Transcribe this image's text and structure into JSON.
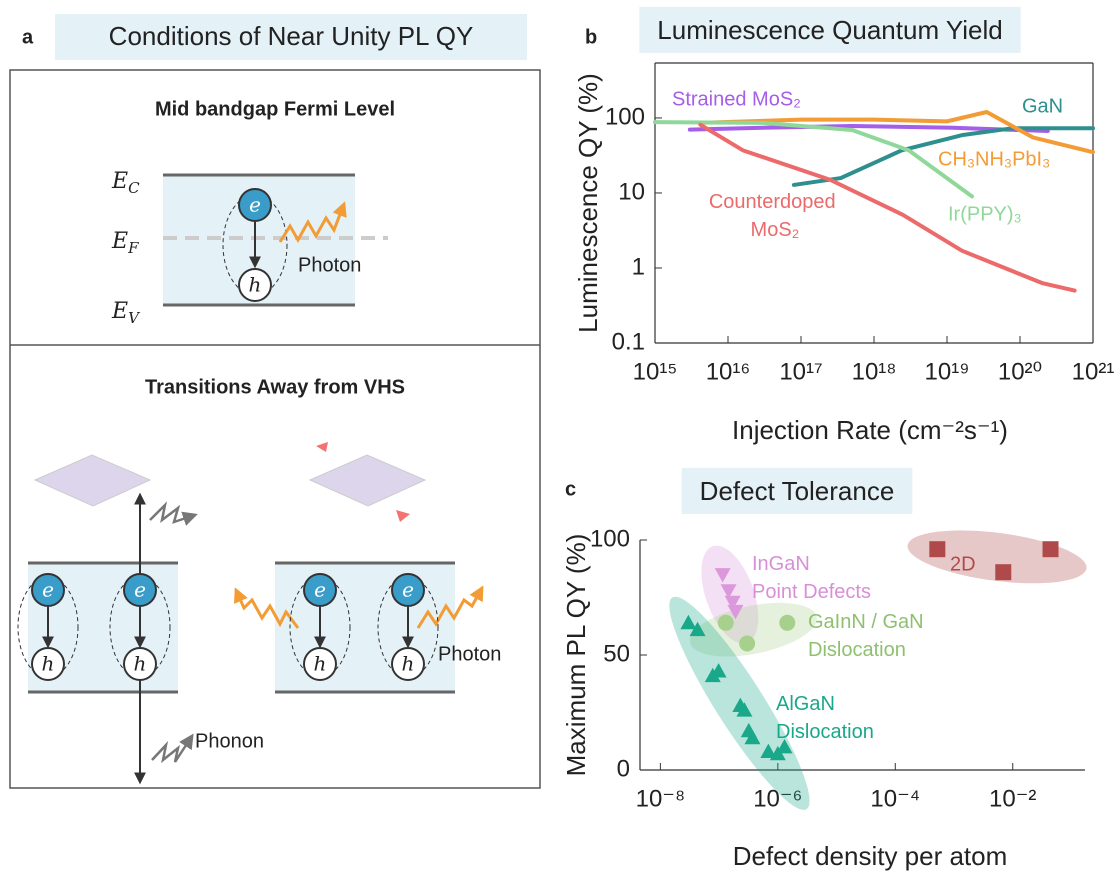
{
  "diagram": {
    "panel_label": "a",
    "title": "Conditions of Near Unity PL QY",
    "top": {
      "heading": "Mid bandgap Fermi Level",
      "photon": "Photon",
      "levels": [
        {
          "symbol": "E",
          "subscript": "C"
        },
        {
          "symbol": "E",
          "subscript": "F"
        },
        {
          "symbol": "E",
          "subscript": "V"
        }
      ]
    },
    "bottom": {
      "heading": "Transitions Away from VHS",
      "phonon": "Phonon",
      "photon": "Photon"
    },
    "electron": "e",
    "hole": "h"
  },
  "chart_data": [
    {
      "type": "line",
      "panel_label": "b",
      "title": "Luminescence Quantum Yield",
      "x_label": "Injection Rate (cm⁻²s⁻¹)",
      "y_label": "Luminescence QY (%)",
      "x_scale": "log",
      "y_scale": "log",
      "xlim": [
        1000000000000000.0,
        1e+21
      ],
      "ylim": [
        0.1,
        540
      ],
      "xticks": [
        {
          "value": 1000000000000000.0,
          "label": "10¹⁵"
        },
        {
          "value": 1e+16,
          "label": "10¹⁶"
        },
        {
          "value": 1e+17,
          "label": "10¹⁷"
        },
        {
          "value": 1e+18,
          "label": "10¹⁸"
        },
        {
          "value": 1e+19,
          "label": "10¹⁹"
        },
        {
          "value": 1e+20,
          "label": "10²⁰"
        },
        {
          "value": 1e+21,
          "label": "10²¹"
        }
      ],
      "yticks": [
        0.1,
        1,
        10,
        100
      ],
      "series": [
        {
          "name": "Strained MoS₂",
          "color": "#a55ee8",
          "x": [
            3000000000000000.0,
            3e+16,
            5e+17,
            1.2e+19,
            2.4e+20
          ],
          "values": [
            70,
            74,
            78,
            74,
            67
          ]
        },
        {
          "name": "GaN",
          "color": "#2f8f8f",
          "x": [
            8e+16,
            3.5e+17,
            2.4e+18,
            1.6e+19,
            8e+19,
            1e+21
          ],
          "values": [
            12.8,
            15.8,
            37,
            59,
            73,
            73
          ]
        },
        {
          "name": "CH₃NH₃PbI₃",
          "color": "#f39b34",
          "x": [
            4000000000000000.0,
            1e+17,
            1e+18,
            1e+19,
            3.5e+19,
            1.5e+20,
            1e+21
          ],
          "values": [
            86,
            95,
            95,
            90,
            120,
            55,
            35
          ]
        },
        {
          "name": "Ir(PPY)₃",
          "color": "#8fd89a",
          "x": [
            1000000000000000.0,
            3e+16,
            5e+17,
            3e+18,
            2.2e+19
          ],
          "values": [
            88,
            86,
            69,
            37,
            9
          ]
        },
        {
          "name": "Counterdoped MoS₂",
          "color": "#ec6a6a",
          "x": [
            4200000000000000.0,
            1.6e+16,
            2.5e+17,
            2.5e+18,
            1.6e+19,
            2e+20,
            5.6e+20
          ],
          "values": [
            81,
            37,
            15,
            5.1,
            1.7,
            0.63,
            0.5
          ]
        }
      ]
    },
    {
      "type": "scatter",
      "panel_label": "c",
      "title": "Defect Tolerance",
      "x_label": "Defect density per atom",
      "y_label": "Maximum PL QY (%)",
      "x_scale": "log",
      "xlim": [
        4.5e-09,
        0.17
      ],
      "ylim": [
        0,
        100
      ],
      "xticks": [
        {
          "value": 1e-08,
          "label": "10⁻⁸"
        },
        {
          "value": 1e-06,
          "label": "10⁻⁶"
        },
        {
          "value": 0.0001,
          "label": "10⁻⁴"
        },
        {
          "value": 0.01,
          "label": "10⁻²"
        }
      ],
      "yticks": [
        0,
        50,
        100
      ],
      "series": [
        {
          "name": "InGaN Point Defects",
          "color": "#dc98dc",
          "marker": "triangle-down",
          "x": [
            1.15e-07,
            1.45e-07,
            1.7e-07,
            1.9e-07
          ],
          "values": [
            85,
            78,
            73,
            69
          ]
        },
        {
          "name": "GaInN / GaN Dislocation",
          "color": "#a8d08d",
          "marker": "circle",
          "x": [
            1.3e-07,
            3e-07,
            1.45e-06
          ],
          "values": [
            64,
            55,
            64
          ]
        },
        {
          "name": "AlGaN Dislocation",
          "color": "#1aa88a",
          "marker": "triangle-up",
          "x": [
            3e-08,
            4.3e-08,
            7.8e-08,
            9.8e-08,
            2.3e-07,
            2.7e-07,
            3.2e-07,
            3.7e-07,
            6.9e-07,
            1e-06,
            1.3e-06
          ],
          "values": [
            64,
            61,
            41,
            43,
            28,
            26,
            17,
            14,
            8,
            7,
            10
          ]
        },
        {
          "name": "2D",
          "color": "#b04a4a",
          "marker": "square",
          "x": [
            0.00052,
            0.0069,
            0.044
          ],
          "values": [
            96,
            86,
            96
          ]
        }
      ]
    }
  ]
}
